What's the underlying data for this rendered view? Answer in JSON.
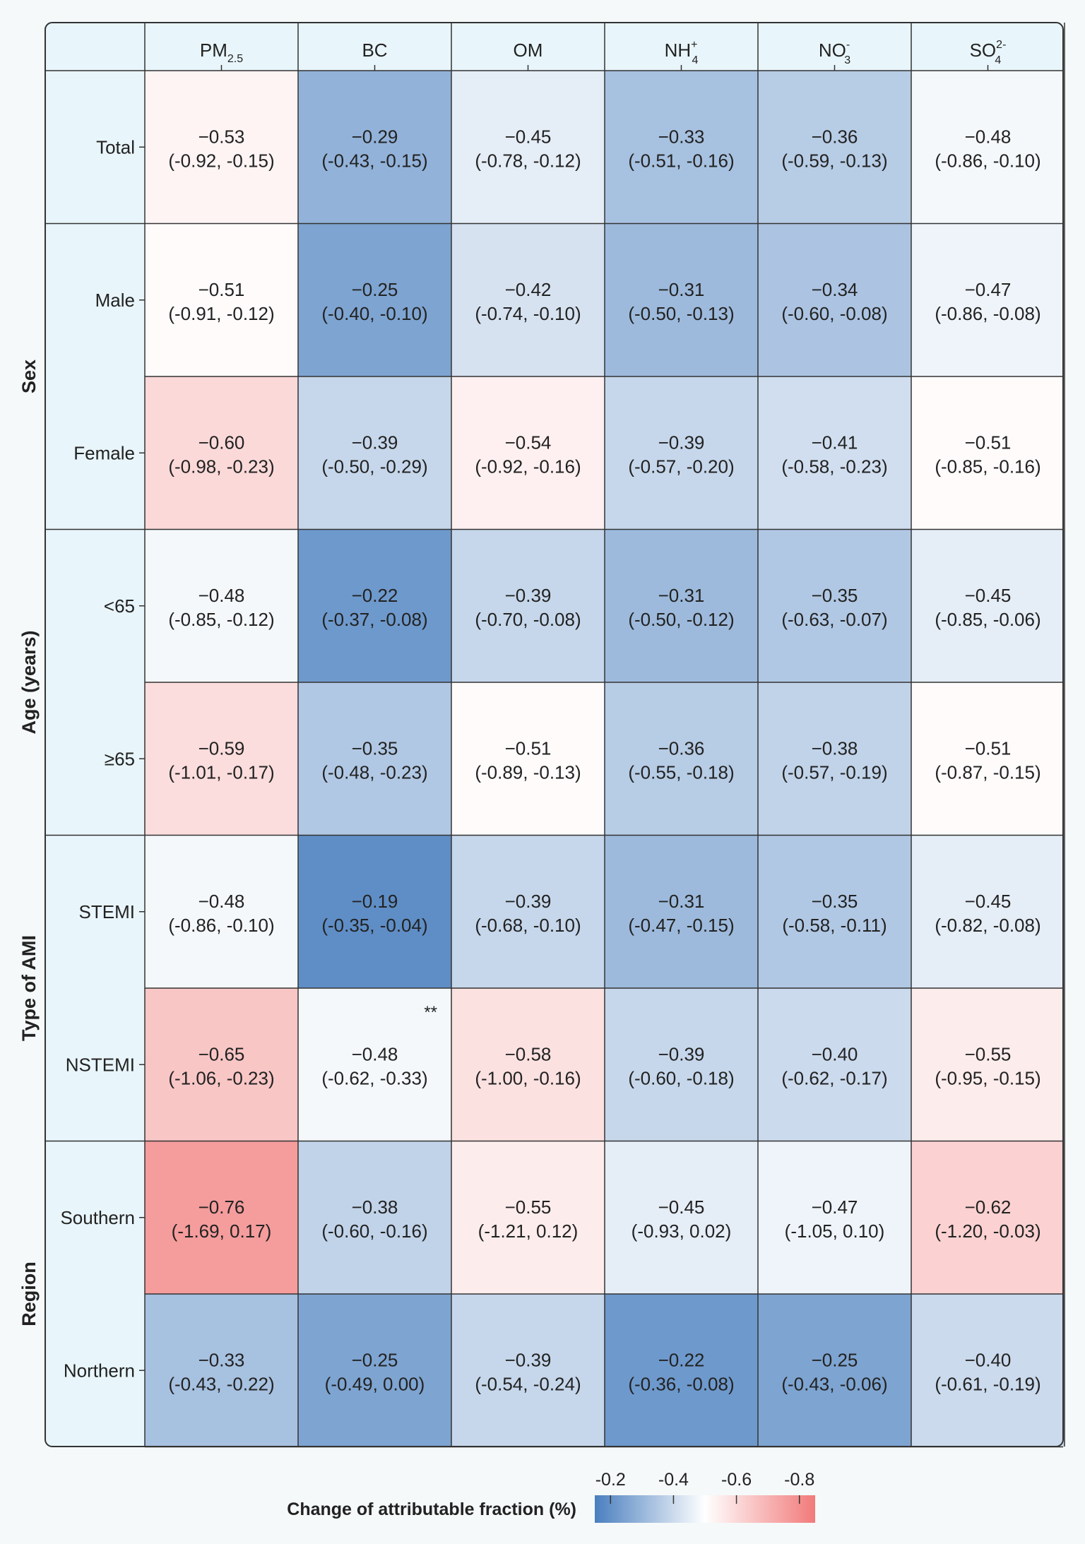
{
  "chart_data": {
    "type": "heatmap",
    "columns": [
      {
        "base": "PM",
        "sub": "2.5",
        "sup": ""
      },
      {
        "base": "BC",
        "sub": "",
        "sup": ""
      },
      {
        "base": "OM",
        "sub": "",
        "sup": ""
      },
      {
        "base": "NH",
        "sub": "4",
        "sup": "+"
      },
      {
        "base": "NO",
        "sub": "3",
        "sup": "-"
      },
      {
        "base": "SO",
        "sub": "4",
        "sup": "2-"
      }
    ],
    "groups": [
      {
        "label": "",
        "rows": [
          "Total"
        ]
      },
      {
        "label": "Sex",
        "rows": [
          "Male",
          "Female"
        ]
      },
      {
        "label": "Age (years)",
        "rows": [
          "<65",
          "≥65"
        ]
      },
      {
        "label": "Type of AMI",
        "rows": [
          "STEMI",
          "NSTEMI"
        ]
      },
      {
        "label": "Region",
        "rows": [
          "Southern",
          "Northern"
        ]
      }
    ],
    "values": [
      [
        -0.53,
        -0.29,
        -0.45,
        -0.33,
        -0.36,
        -0.48
      ],
      [
        -0.51,
        -0.25,
        -0.42,
        -0.31,
        -0.34,
        -0.47
      ],
      [
        -0.6,
        -0.39,
        -0.54,
        -0.39,
        -0.41,
        -0.51
      ],
      [
        -0.48,
        -0.22,
        -0.39,
        -0.31,
        -0.35,
        -0.45
      ],
      [
        -0.59,
        -0.35,
        -0.51,
        -0.36,
        -0.38,
        -0.51
      ],
      [
        -0.48,
        -0.19,
        -0.39,
        -0.31,
        -0.35,
        -0.45
      ],
      [
        -0.65,
        -0.48,
        -0.58,
        -0.39,
        -0.4,
        -0.55
      ],
      [
        -0.76,
        -0.38,
        -0.55,
        -0.45,
        -0.47,
        -0.62
      ],
      [
        -0.33,
        -0.25,
        -0.39,
        -0.22,
        -0.25,
        -0.4
      ]
    ],
    "value_labels": [
      [
        "−0.53",
        "−0.29",
        "−0.45",
        "−0.33",
        "−0.36",
        "−0.48"
      ],
      [
        "−0.51",
        "−0.25",
        "−0.42",
        "−0.31",
        "−0.34",
        "−0.47"
      ],
      [
        "−0.60",
        "−0.39",
        "−0.54",
        "−0.39",
        "−0.41",
        "−0.51"
      ],
      [
        "−0.48",
        "−0.22",
        "−0.39",
        "−0.31",
        "−0.35",
        "−0.45"
      ],
      [
        "−0.59",
        "−0.35",
        "−0.51",
        "−0.36",
        "−0.38",
        "−0.51"
      ],
      [
        "−0.48",
        "−0.19",
        "−0.39",
        "−0.31",
        "−0.35",
        "−0.45"
      ],
      [
        "−0.65",
        "−0.48",
        "−0.58",
        "−0.39",
        "−0.40",
        "−0.55"
      ],
      [
        "−0.76",
        "−0.38",
        "−0.55",
        "−0.45",
        "−0.47",
        "−0.62"
      ],
      [
        "−0.33",
        "−0.25",
        "−0.39",
        "−0.22",
        "−0.25",
        "−0.40"
      ]
    ],
    "ci_labels": [
      [
        "(-0.92, -0.15)",
        "(-0.43, -0.15)",
        "(-0.78, -0.12)",
        "(-0.51, -0.16)",
        "(-0.59, -0.13)",
        "(-0.86, -0.10)"
      ],
      [
        "(-0.91, -0.12)",
        "(-0.40, -0.10)",
        "(-0.74, -0.10)",
        "(-0.50, -0.13)",
        "(-0.60, -0.08)",
        "(-0.86, -0.08)"
      ],
      [
        "(-0.98, -0.23)",
        "(-0.50, -0.29)",
        "(-0.92, -0.16)",
        "(-0.57, -0.20)",
        "(-0.58, -0.23)",
        "(-0.85, -0.16)"
      ],
      [
        "(-0.85, -0.12)",
        "(-0.37, -0.08)",
        "(-0.70, -0.08)",
        "(-0.50, -0.12)",
        "(-0.63, -0.07)",
        "(-0.85, -0.06)"
      ],
      [
        "(-1.01, -0.17)",
        "(-0.48, -0.23)",
        "(-0.89, -0.13)",
        "(-0.55, -0.18)",
        "(-0.57, -0.19)",
        "(-0.87, -0.15)"
      ],
      [
        "(-0.86, -0.10)",
        "(-0.35, -0.04)",
        "(-0.68, -0.10)",
        "(-0.47, -0.15)",
        "(-0.58, -0.11)",
        "(-0.82, -0.08)"
      ],
      [
        "(-1.06, -0.23)",
        "(-0.62, -0.33)",
        "(-1.00, -0.16)",
        "(-0.60, -0.18)",
        "(-0.62, -0.17)",
        "(-0.95, -0.15)"
      ],
      [
        "(-1.69, 0.17)",
        "(-0.60, -0.16)",
        "(-1.21, 0.12)",
        "(-0.93, 0.02)",
        "(-1.05, 0.10)",
        "(-1.20, -0.03)"
      ],
      [
        "(-0.43, -0.22)",
        "(-0.49, 0.00)",
        "(-0.54, -0.24)",
        "(-0.36, -0.08)",
        "(-0.43, -0.06)",
        "(-0.61, -0.19)"
      ]
    ],
    "annotations": [
      {
        "row": 6,
        "col": 1,
        "text": "**"
      }
    ],
    "colorbar": {
      "title": "Change of attributable fraction (%)",
      "range": [
        -0.15,
        -0.85
      ],
      "ticks": [
        -0.2,
        -0.4,
        -0.6,
        -0.8
      ],
      "tick_labels": [
        "-0.2",
        "-0.4",
        "-0.6",
        "-0.8"
      ],
      "low_color": "#4a7fbf",
      "mid_color": "#ffffff",
      "high_color": "#f27a7a",
      "mid_value": -0.5
    },
    "legend": "bottom-center",
    "grid": true
  }
}
